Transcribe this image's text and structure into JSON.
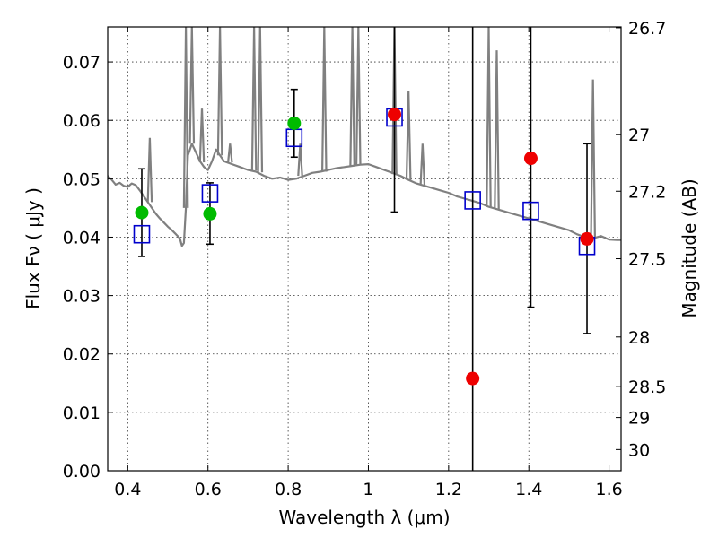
{
  "chart_data": {
    "type": "scatter",
    "title": "",
    "xlabel": "Wavelength  λ (μm)",
    "ylabel": "Flux  Fν  ( μJy )",
    "y2label": "Magnitude (AB)",
    "xlim": [
      0.35,
      1.63
    ],
    "ylim": [
      0.0,
      0.076
    ],
    "xticks": [
      0.4,
      0.6,
      0.8,
      1.0,
      1.2,
      1.4,
      1.6
    ],
    "xtick_labels": [
      "0.4",
      "0.6",
      "0.8",
      "1",
      "1.2",
      "1.4",
      "1.6"
    ],
    "yticks": [
      0.0,
      0.01,
      0.02,
      0.03,
      0.04,
      0.05,
      0.06,
      0.07
    ],
    "ytick_labels": [
      "0.00",
      "0.01",
      "0.02",
      "0.03",
      "0.04",
      "0.05",
      "0.06",
      "0.07"
    ],
    "y2ticks": [
      {
        "mag": 26.7,
        "label": "26.7"
      },
      {
        "mag": 27.0,
        "label": "27"
      },
      {
        "mag": 27.2,
        "label": "27.2"
      },
      {
        "mag": 27.5,
        "label": "27.5"
      },
      {
        "mag": 28.0,
        "label": "28"
      },
      {
        "mag": 28.5,
        "label": "28.5"
      },
      {
        "mag": 29.0,
        "label": "29"
      },
      {
        "mag": 30.0,
        "label": "30"
      }
    ],
    "grid": true,
    "series": [
      {
        "kind": "model_spectrum",
        "color": "#808080",
        "x": [
          0.35,
          0.36,
          0.37,
          0.38,
          0.39,
          0.4,
          0.41,
          0.42,
          0.43,
          0.44,
          0.45,
          0.46,
          0.47,
          0.48,
          0.49,
          0.5,
          0.51,
          0.52,
          0.53,
          0.535,
          0.54,
          0.545,
          0.55,
          0.56,
          0.57,
          0.58,
          0.59,
          0.6,
          0.61,
          0.62,
          0.63,
          0.64,
          0.66,
          0.68,
          0.7,
          0.72,
          0.74,
          0.76,
          0.78,
          0.8,
          0.82,
          0.84,
          0.86,
          0.88,
          0.9,
          0.92,
          0.94,
          0.96,
          0.98,
          1.0,
          1.02,
          1.04,
          1.06,
          1.08,
          1.1,
          1.12,
          1.14,
          1.16,
          1.18,
          1.2,
          1.22,
          1.24,
          1.26,
          1.28,
          1.3,
          1.32,
          1.34,
          1.36,
          1.38,
          1.4,
          1.42,
          1.44,
          1.46,
          1.48,
          1.5,
          1.52,
          1.54,
          1.56,
          1.58,
          1.6,
          1.62,
          1.63
        ],
        "y": [
          0.0505,
          0.0498,
          0.049,
          0.0493,
          0.0488,
          0.0486,
          0.0492,
          0.0489,
          0.048,
          0.047,
          0.046,
          0.045,
          0.044,
          0.0432,
          0.0425,
          0.0418,
          0.0412,
          0.0405,
          0.0398,
          0.0385,
          0.039,
          0.045,
          0.054,
          0.056,
          0.0545,
          0.053,
          0.052,
          0.0515,
          0.053,
          0.055,
          0.054,
          0.053,
          0.0525,
          0.052,
          0.0515,
          0.0512,
          0.0505,
          0.05,
          0.0502,
          0.0498,
          0.05,
          0.0505,
          0.051,
          0.0512,
          0.0515,
          0.0518,
          0.052,
          0.0522,
          0.0524,
          0.0525,
          0.052,
          0.0515,
          0.051,
          0.0505,
          0.0498,
          0.0492,
          0.0488,
          0.0484,
          0.048,
          0.0476,
          0.047,
          0.0466,
          0.0462,
          0.0458,
          0.0452,
          0.0448,
          0.0444,
          0.044,
          0.0436,
          0.0432,
          0.0428,
          0.0424,
          0.042,
          0.0416,
          0.0412,
          0.0405,
          0.04,
          0.0398,
          0.0402,
          0.0396,
          0.0395,
          0.0395
        ]
      },
      {
        "kind": "emission_lines",
        "color": "#808080",
        "lines": [
          {
            "x": 0.455,
            "base": 0.046,
            "peak": 0.057
          },
          {
            "x": 0.545,
            "base": 0.045,
            "peak": 0.076
          },
          {
            "x": 0.56,
            "base": 0.056,
            "peak": 0.076
          },
          {
            "x": 0.585,
            "base": 0.0528,
            "peak": 0.062
          },
          {
            "x": 0.63,
            "base": 0.054,
            "peak": 0.076
          },
          {
            "x": 0.655,
            "base": 0.0528,
            "peak": 0.056
          },
          {
            "x": 0.715,
            "base": 0.0514,
            "peak": 0.076
          },
          {
            "x": 0.73,
            "base": 0.0511,
            "peak": 0.076
          },
          {
            "x": 0.83,
            "base": 0.0505,
            "peak": 0.056
          },
          {
            "x": 0.89,
            "base": 0.0512,
            "peak": 0.076
          },
          {
            "x": 0.96,
            "base": 0.0522,
            "peak": 0.076
          },
          {
            "x": 0.975,
            "base": 0.0523,
            "peak": 0.076
          },
          {
            "x": 1.065,
            "base": 0.0508,
            "peak": 0.076
          },
          {
            "x": 1.1,
            "base": 0.0498,
            "peak": 0.065
          },
          {
            "x": 1.135,
            "base": 0.0489,
            "peak": 0.056
          },
          {
            "x": 1.3,
            "base": 0.0452,
            "peak": 0.076
          },
          {
            "x": 1.32,
            "base": 0.0448,
            "peak": 0.072
          },
          {
            "x": 1.56,
            "base": 0.0398,
            "peak": 0.067
          }
        ]
      },
      {
        "kind": "synthetic_photometry",
        "marker": "open-square",
        "color": "#0000cc",
        "x": [
          0.435,
          0.605,
          0.815,
          1.065,
          1.26,
          1.405,
          1.545
        ],
        "y": [
          0.0405,
          0.0475,
          0.057,
          0.0605,
          0.0463,
          0.0445,
          0.0385
        ]
      },
      {
        "kind": "observed_photometry",
        "marker": "filled-circle",
        "color": "#00bb00",
        "x": [
          0.435,
          0.605,
          0.815
        ],
        "y": [
          0.0442,
          0.044,
          0.0595
        ],
        "yerr": [
          [
            0.0367,
            0.0517
          ],
          [
            0.0388,
            0.0493
          ],
          [
            0.0537,
            0.0653
          ]
        ]
      },
      {
        "kind": "observed_photometry",
        "marker": "filled-circle",
        "color": "#ee0000",
        "x": [
          1.065,
          1.26,
          1.405,
          1.545
        ],
        "y": [
          0.061,
          0.0158,
          0.0535,
          0.0397
        ],
        "yerr": [
          [
            0.0443,
            0.076
          ],
          [
            0.0,
            0.076
          ],
          [
            0.028,
            0.076
          ],
          [
            0.0235,
            0.056
          ]
        ]
      }
    ]
  }
}
